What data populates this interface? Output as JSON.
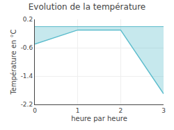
{
  "chart_data": {
    "type": "area",
    "title": "Evolution de la température",
    "xlabel": "heure par heure",
    "ylabel": "Température en °C",
    "x": [
      0,
      1,
      2,
      3
    ],
    "values": [
      -0.5,
      -0.1,
      -0.1,
      -1.9
    ],
    "color": "#5bbccc",
    "xlim": [
      0,
      3
    ],
    "ylim": [
      -2.2,
      0.2
    ],
    "xticks": [
      0,
      1,
      2,
      3
    ],
    "yticks": [
      0.2,
      -0.6,
      -1.4,
      -2.2
    ],
    "grid": true
  }
}
